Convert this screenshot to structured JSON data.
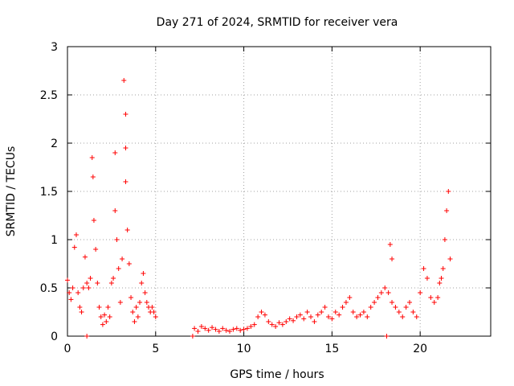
{
  "chart_data": {
    "type": "scatter",
    "title": "Day 271 of 2024, SRMTID for receiver vera",
    "xlabel": "GPS time / hours",
    "ylabel": "SRMTID / TECUs",
    "xlim": [
      0,
      24
    ],
    "ylim": [
      0,
      3
    ],
    "xticks": [
      0,
      5,
      10,
      15,
      20
    ],
    "xtick_labels": [
      "0",
      "5",
      "10",
      "15",
      "20"
    ],
    "yticks": [
      0,
      0.5,
      1,
      1.5,
      2,
      2.5,
      3
    ],
    "ytick_labels": [
      "0",
      "0.5",
      "1",
      "1.5",
      "2",
      "2.5",
      "3"
    ],
    "grid": true,
    "marker": "+",
    "color": "#ff0000",
    "series": [
      {
        "name": "SRMTID",
        "x": [
          0.0,
          0.1,
          0.2,
          0.3,
          0.4,
          0.5,
          0.6,
          0.7,
          0.8,
          0.9,
          1.0,
          1.1,
          1.2,
          1.3,
          1.4,
          1.5,
          1.6,
          1.7,
          1.8,
          1.9,
          2.0,
          2.1,
          2.2,
          2.3,
          2.4,
          2.5,
          2.6,
          2.7,
          2.8,
          2.9,
          3.0,
          3.1,
          3.2,
          3.3,
          3.4,
          3.5,
          3.6,
          3.7,
          3.8,
          3.9,
          4.0,
          4.1,
          4.2,
          4.3,
          4.4,
          4.5,
          4.6,
          4.7,
          4.8,
          4.9,
          5.0,
          7.2,
          7.4,
          7.6,
          7.8,
          8.0,
          8.2,
          8.4,
          8.6,
          8.8,
          9.0,
          9.2,
          9.4,
          9.6,
          9.8,
          10.0,
          10.2,
          10.4,
          10.6,
          10.8,
          11.0,
          11.2,
          11.4,
          11.6,
          11.8,
          12.0,
          12.2,
          12.4,
          12.6,
          12.8,
          13.0,
          13.2,
          13.4,
          13.6,
          13.8,
          14.0,
          14.2,
          14.4,
          14.6,
          14.8,
          15.0,
          15.2,
          15.4,
          15.6,
          15.8,
          16.0,
          16.2,
          16.4,
          16.6,
          16.8,
          17.0,
          17.2,
          17.4,
          17.6,
          17.8,
          18.0,
          18.2,
          18.4,
          18.6,
          18.8,
          19.0,
          19.2,
          19.4,
          19.6,
          19.8,
          20.0,
          20.2,
          20.4,
          20.6,
          20.8,
          21.0,
          21.1,
          21.2,
          21.3,
          21.4,
          21.5,
          21.6,
          21.7,
          1.1,
          7.1,
          18.1,
          18.3,
          18.4,
          3.3,
          3.3,
          2.7,
          1.45
        ],
        "y": [
          0.58,
          0.45,
          0.38,
          0.5,
          0.92,
          1.05,
          0.45,
          0.3,
          0.25,
          0.5,
          0.82,
          0.55,
          0.5,
          0.6,
          1.85,
          1.2,
          0.9,
          0.55,
          0.3,
          0.2,
          0.12,
          0.22,
          0.15,
          0.3,
          0.2,
          0.55,
          0.6,
          1.3,
          1.0,
          0.7,
          0.35,
          0.8,
          2.65,
          1.6,
          1.1,
          0.75,
          0.4,
          0.25,
          0.15,
          0.3,
          0.2,
          0.35,
          0.55,
          0.65,
          0.45,
          0.35,
          0.3,
          0.25,
          0.3,
          0.25,
          0.2,
          0.08,
          0.05,
          0.1,
          0.08,
          0.06,
          0.09,
          0.07,
          0.05,
          0.08,
          0.06,
          0.05,
          0.07,
          0.08,
          0.06,
          0.07,
          0.08,
          0.1,
          0.12,
          0.2,
          0.25,
          0.22,
          0.15,
          0.12,
          0.1,
          0.14,
          0.12,
          0.15,
          0.18,
          0.16,
          0.2,
          0.22,
          0.18,
          0.25,
          0.2,
          0.15,
          0.22,
          0.25,
          0.3,
          0.2,
          0.18,
          0.25,
          0.22,
          0.3,
          0.35,
          0.4,
          0.25,
          0.2,
          0.22,
          0.25,
          0.2,
          0.3,
          0.35,
          0.4,
          0.45,
          0.5,
          0.45,
          0.35,
          0.3,
          0.25,
          0.2,
          0.3,
          0.35,
          0.25,
          0.2,
          0.45,
          0.7,
          0.6,
          0.4,
          0.35,
          0.4,
          0.55,
          0.6,
          0.7,
          1.0,
          1.3,
          1.5,
          0.8,
          0.0,
          0.0,
          0.0,
          0.95,
          0.8,
          2.3,
          1.95,
          1.9,
          1.65
        ]
      }
    ]
  }
}
